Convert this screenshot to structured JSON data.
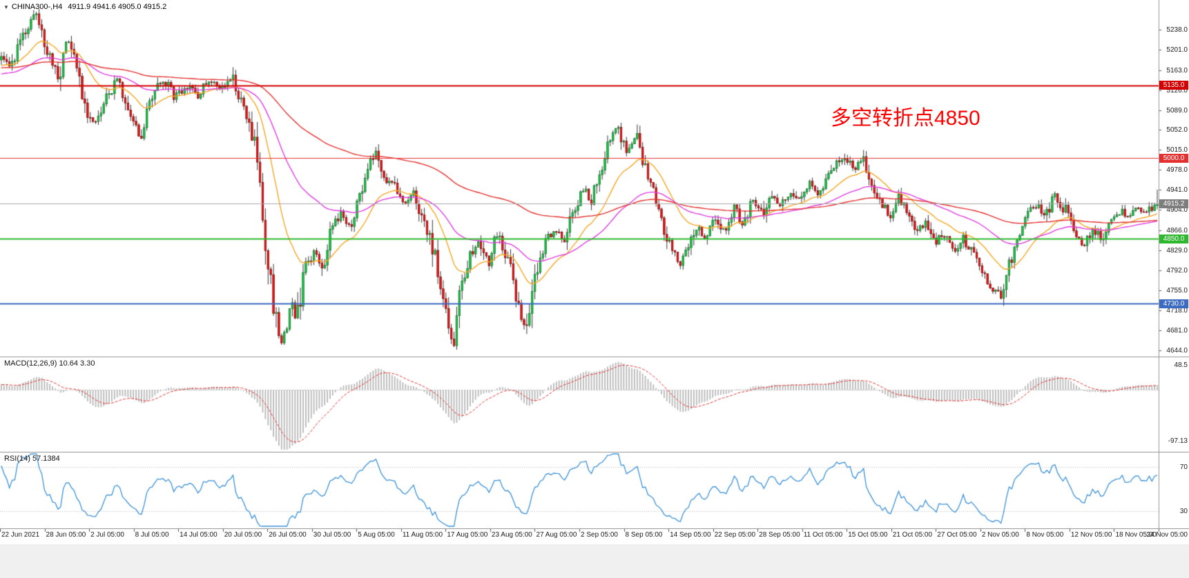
{
  "header": {
    "collapse_icon": "▼",
    "symbol": "CHINA300-,H4",
    "ohlc": "4911.9 4941.6 4905.0 4915.2"
  },
  "annotation": {
    "text": "多空转折点4850",
    "color": "#ff0000"
  },
  "colors": {
    "bull": "#1fc24a",
    "bull_border": "#0a6e22",
    "bear": "#e51616",
    "bear_border": "#7d0606",
    "wick": "#333333",
    "ma_fast": "#f5a623",
    "ma_mid": "#e03ce0",
    "ma_slow": "#e53030",
    "macd_hist": "#b8b8b8",
    "macd_signal": "#e53030",
    "rsi": "#3a90d8",
    "grid": "#bbbbbb",
    "current_line": "#aaaaaa",
    "axis_text": "#1a1a1a"
  },
  "price_axis": {
    "ticks": [
      "5238.0",
      "5201.0",
      "5163.0",
      "5126.0",
      "5089.0",
      "5052.0",
      "5015.0",
      "4978.0",
      "4941.0",
      "4904.0",
      "4866.0",
      "4829.0",
      "4792.0",
      "4755.0",
      "4718.0",
      "4681.0",
      "4644.0"
    ]
  },
  "hlines": [
    {
      "value": 5135.0,
      "label": "5135.0",
      "color": "#d40000",
      "width": 2
    },
    {
      "value": 5000.0,
      "label": "5000.0",
      "color": "#e53030",
      "width": 1
    },
    {
      "value": 4850.0,
      "label": "4850.0",
      "color": "#2eb82e",
      "width": 2
    },
    {
      "value": 4730.0,
      "label": "4730.0",
      "color": "#3c6bc4",
      "width": 2
    }
  ],
  "current_price": {
    "value": 4915.2,
    "label": "4915.2",
    "bg": "#7d7d7d"
  },
  "macd": {
    "label": "MACD(12,26,9) 10.64 3.30",
    "fast": 12,
    "slow": 26,
    "signal": 9,
    "value": 10.64,
    "signal_value": 3.3,
    "axis_max_label": "48.5",
    "axis_min_label": "-97.13",
    "axis_max": 48.5,
    "axis_min": -97.13
  },
  "rsi": {
    "label": "RSI(14) 57.1384",
    "period": 14,
    "value": 57.1384,
    "levels": [
      70,
      30
    ],
    "axis_labels": [
      "70",
      "30"
    ]
  },
  "time_axis": {
    "labels": [
      "22 Jun 2021",
      "28 Jun 05:00",
      "2 Jul 05:00",
      "8 Jul 05:00",
      "14 Jul 05:00",
      "20 Jul 05:00",
      "26 Jul 05:00",
      "30 Jul 05:00",
      "5 Aug 05:00",
      "11 Aug 05:00",
      "17 Aug 05:00",
      "23 Aug 05:00",
      "27 Aug 05:00",
      "2 Sep 05:00",
      "8 Sep 05:00",
      "14 Sep 05:00",
      "22 Sep 05:00",
      "28 Sep 05:00",
      "11 Oct 05:00",
      "15 Oct 05:00",
      "21 Oct 05:00",
      "27 Oct 05:00",
      "2 Nov 05:00",
      "8 Nov 05:00",
      "12 Nov 05:00",
      "18 Nov 05:00",
      "24 Nov 05:00"
    ]
  },
  "chart_data": {
    "type": "candlestick",
    "symbol": "CHINA300-",
    "timeframe": "H4",
    "title": "CHINA300-,H4",
    "last_ohlc": {
      "open": 4911.9,
      "high": 4941.6,
      "low": 4905.0,
      "close": 4915.2
    },
    "ylim": [
      4632,
      5293
    ],
    "visible_candles": 430,
    "horizontal_levels": [
      5135.0,
      5000.0,
      4850.0,
      4730.0
    ],
    "moving_averages": [
      {
        "period": 21,
        "color": "#f5a623"
      },
      {
        "period": 55,
        "color": "#e03ce0"
      },
      {
        "period": 144,
        "color": "#e53030"
      }
    ],
    "indicators": [
      {
        "name": "MACD",
        "params": [
          12,
          26,
          9
        ],
        "current": [
          10.64,
          3.3
        ],
        "range": [
          -97.13,
          48.5
        ]
      },
      {
        "name": "RSI",
        "params": [
          14
        ],
        "current": 57.1384,
        "levels": [
          30,
          70
        ]
      }
    ],
    "price_path": [
      [
        0.0,
        5185
      ],
      [
        0.008,
        5160
      ],
      [
        0.02,
        5235
      ],
      [
        0.03,
        5265
      ],
      [
        0.04,
        5200
      ],
      [
        0.05,
        5150
      ],
      [
        0.057,
        5225
      ],
      [
        0.065,
        5175
      ],
      [
        0.074,
        5085
      ],
      [
        0.082,
        5060
      ],
      [
        0.092,
        5115
      ],
      [
        0.102,
        5150
      ],
      [
        0.11,
        5075
      ],
      [
        0.12,
        5042
      ],
      [
        0.13,
        5105
      ],
      [
        0.14,
        5150
      ],
      [
        0.15,
        5110
      ],
      [
        0.16,
        5138
      ],
      [
        0.17,
        5118
      ],
      [
        0.18,
        5148
      ],
      [
        0.19,
        5128
      ],
      [
        0.2,
        5148
      ],
      [
        0.208,
        5098
      ],
      [
        0.215,
        5070
      ],
      [
        0.222,
        4980
      ],
      [
        0.228,
        4855
      ],
      [
        0.234,
        4745
      ],
      [
        0.24,
        4672
      ],
      [
        0.244,
        4648
      ],
      [
        0.25,
        4730
      ],
      [
        0.256,
        4700
      ],
      [
        0.262,
        4795
      ],
      [
        0.27,
        4822
      ],
      [
        0.278,
        4798
      ],
      [
        0.286,
        4868
      ],
      [
        0.294,
        4898
      ],
      [
        0.302,
        4878
      ],
      [
        0.31,
        4928
      ],
      [
        0.318,
        4985
      ],
      [
        0.325,
        5008
      ],
      [
        0.332,
        4962
      ],
      [
        0.34,
        4948
      ],
      [
        0.348,
        4915
      ],
      [
        0.356,
        4935
      ],
      [
        0.364,
        4892
      ],
      [
        0.372,
        4848
      ],
      [
        0.38,
        4755
      ],
      [
        0.386,
        4700
      ],
      [
        0.391,
        4655
      ],
      [
        0.397,
        4762
      ],
      [
        0.405,
        4820
      ],
      [
        0.413,
        4852
      ],
      [
        0.421,
        4808
      ],
      [
        0.429,
        4862
      ],
      [
        0.437,
        4818
      ],
      [
        0.443,
        4768
      ],
      [
        0.449,
        4702
      ],
      [
        0.455,
        4686
      ],
      [
        0.463,
        4792
      ],
      [
        0.471,
        4850
      ],
      [
        0.479,
        4872
      ],
      [
        0.487,
        4848
      ],
      [
        0.495,
        4902
      ],
      [
        0.503,
        4945
      ],
      [
        0.511,
        4922
      ],
      [
        0.519,
        4982
      ],
      [
        0.527,
        5042
      ],
      [
        0.533,
        5056
      ],
      [
        0.541,
        5012
      ],
      [
        0.549,
        5040
      ],
      [
        0.555,
        4992
      ],
      [
        0.563,
        4940
      ],
      [
        0.571,
        4880
      ],
      [
        0.579,
        4832
      ],
      [
        0.586,
        4800
      ],
      [
        0.594,
        4826
      ],
      [
        0.602,
        4872
      ],
      [
        0.61,
        4850
      ],
      [
        0.618,
        4892
      ],
      [
        0.626,
        4866
      ],
      [
        0.634,
        4906
      ],
      [
        0.642,
        4880
      ],
      [
        0.65,
        4922
      ],
      [
        0.658,
        4896
      ],
      [
        0.666,
        4940
      ],
      [
        0.674,
        4916
      ],
      [
        0.682,
        4936
      ],
      [
        0.69,
        4920
      ],
      [
        0.698,
        4952
      ],
      [
        0.706,
        4932
      ],
      [
        0.714,
        4962
      ],
      [
        0.722,
        4992
      ],
      [
        0.73,
        5006
      ],
      [
        0.738,
        4976
      ],
      [
        0.746,
        4996
      ],
      [
        0.752,
        4950
      ],
      [
        0.76,
        4918
      ],
      [
        0.768,
        4892
      ],
      [
        0.776,
        4928
      ],
      [
        0.784,
        4898
      ],
      [
        0.792,
        4862
      ],
      [
        0.8,
        4880
      ],
      [
        0.808,
        4842
      ],
      [
        0.816,
        4862
      ],
      [
        0.824,
        4832
      ],
      [
        0.832,
        4850
      ],
      [
        0.84,
        4828
      ],
      [
        0.848,
        4795
      ],
      [
        0.856,
        4760
      ],
      [
        0.864,
        4748
      ],
      [
        0.872,
        4800
      ],
      [
        0.88,
        4860
      ],
      [
        0.888,
        4900
      ],
      [
        0.896,
        4915
      ],
      [
        0.904,
        4895
      ],
      [
        0.912,
        4930
      ],
      [
        0.92,
        4905
      ],
      [
        0.928,
        4862
      ],
      [
        0.936,
        4840
      ],
      [
        0.944,
        4870
      ],
      [
        0.952,
        4850
      ],
      [
        0.96,
        4886
      ],
      [
        0.968,
        4902
      ],
      [
        0.976,
        4890
      ],
      [
        0.984,
        4908
      ],
      [
        0.992,
        4900
      ],
      [
        1.0,
        4915
      ]
    ]
  }
}
